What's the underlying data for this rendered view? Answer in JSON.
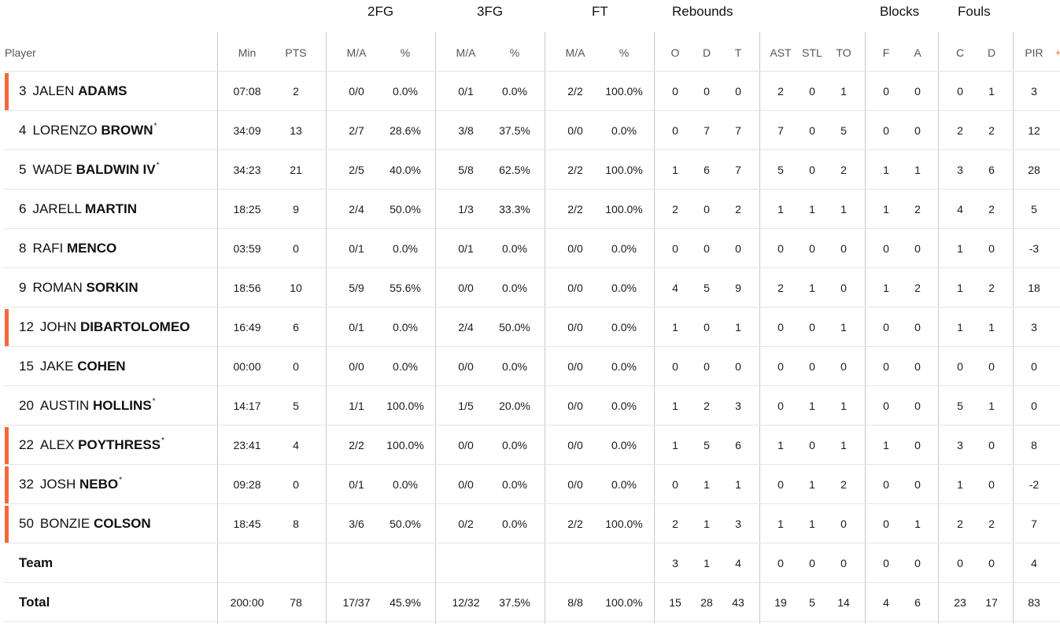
{
  "accent_color": "#f26a3c",
  "group_headers": {
    "twofg": "2FG",
    "threefg": "3FG",
    "ft": "FT",
    "rebounds": "Rebounds",
    "blocks": "Blocks",
    "fouls": "Fouls"
  },
  "column_headers": {
    "player": "Player",
    "min": "Min",
    "pts": "PTS",
    "twofg_ma": "M/A",
    "twofg_pct": "%",
    "threefg_ma": "M/A",
    "threefg_pct": "%",
    "ft_ma": "M/A",
    "ft_pct": "%",
    "reb_o": "O",
    "reb_d": "D",
    "reb_t": "T",
    "ast": "AST",
    "stl": "STL",
    "to": "TO",
    "blk_f": "F",
    "blk_a": "A",
    "foul_c": "C",
    "foul_d": "D",
    "pir": "PIR"
  },
  "players": [
    {
      "number": "3",
      "first": "JALEN",
      "last": "ADAMS",
      "star": false,
      "marker": true,
      "min": "07:08",
      "pts": "2",
      "twofg_ma": "0/0",
      "twofg_pct": "0.0%",
      "threefg_ma": "0/1",
      "threefg_pct": "0.0%",
      "ft_ma": "2/2",
      "ft_pct": "100.0%",
      "reb_o": "0",
      "reb_d": "0",
      "reb_t": "0",
      "ast": "2",
      "stl": "0",
      "to": "1",
      "blk_f": "0",
      "blk_a": "0",
      "foul_c": "0",
      "foul_d": "1",
      "pir": "3"
    },
    {
      "number": "4",
      "first": "LORENZO",
      "last": "BROWN",
      "star": true,
      "marker": false,
      "min": "34:09",
      "pts": "13",
      "twofg_ma": "2/7",
      "twofg_pct": "28.6%",
      "threefg_ma": "3/8",
      "threefg_pct": "37.5%",
      "ft_ma": "0/0",
      "ft_pct": "0.0%",
      "reb_o": "0",
      "reb_d": "7",
      "reb_t": "7",
      "ast": "7",
      "stl": "0",
      "to": "5",
      "blk_f": "0",
      "blk_a": "0",
      "foul_c": "2",
      "foul_d": "2",
      "pir": "12"
    },
    {
      "number": "5",
      "first": "WADE",
      "last": "BALDWIN IV",
      "star": true,
      "marker": false,
      "min": "34:23",
      "pts": "21",
      "twofg_ma": "2/5",
      "twofg_pct": "40.0%",
      "threefg_ma": "5/8",
      "threefg_pct": "62.5%",
      "ft_ma": "2/2",
      "ft_pct": "100.0%",
      "reb_o": "1",
      "reb_d": "6",
      "reb_t": "7",
      "ast": "5",
      "stl": "0",
      "to": "2",
      "blk_f": "1",
      "blk_a": "1",
      "foul_c": "3",
      "foul_d": "6",
      "pir": "28"
    },
    {
      "number": "6",
      "first": "JARELL",
      "last": "MARTIN",
      "star": false,
      "marker": false,
      "min": "18:25",
      "pts": "9",
      "twofg_ma": "2/4",
      "twofg_pct": "50.0%",
      "threefg_ma": "1/3",
      "threefg_pct": "33.3%",
      "ft_ma": "2/2",
      "ft_pct": "100.0%",
      "reb_o": "2",
      "reb_d": "0",
      "reb_t": "2",
      "ast": "1",
      "stl": "1",
      "to": "1",
      "blk_f": "1",
      "blk_a": "2",
      "foul_c": "4",
      "foul_d": "2",
      "pir": "5"
    },
    {
      "number": "8",
      "first": "RAFI",
      "last": "MENCO",
      "star": false,
      "marker": false,
      "min": "03:59",
      "pts": "0",
      "twofg_ma": "0/1",
      "twofg_pct": "0.0%",
      "threefg_ma": "0/1",
      "threefg_pct": "0.0%",
      "ft_ma": "0/0",
      "ft_pct": "0.0%",
      "reb_o": "0",
      "reb_d": "0",
      "reb_t": "0",
      "ast": "0",
      "stl": "0",
      "to": "0",
      "blk_f": "0",
      "blk_a": "0",
      "foul_c": "1",
      "foul_d": "0",
      "pir": "-3"
    },
    {
      "number": "9",
      "first": "ROMAN",
      "last": "SORKIN",
      "star": false,
      "marker": false,
      "min": "18:56",
      "pts": "10",
      "twofg_ma": "5/9",
      "twofg_pct": "55.6%",
      "threefg_ma": "0/0",
      "threefg_pct": "0.0%",
      "ft_ma": "0/0",
      "ft_pct": "0.0%",
      "reb_o": "4",
      "reb_d": "5",
      "reb_t": "9",
      "ast": "2",
      "stl": "1",
      "to": "0",
      "blk_f": "1",
      "blk_a": "2",
      "foul_c": "1",
      "foul_d": "2",
      "pir": "18"
    },
    {
      "number": "12",
      "first": "JOHN",
      "last": "DIBARTOLOMEO",
      "star": false,
      "marker": true,
      "min": "16:49",
      "pts": "6",
      "twofg_ma": "0/1",
      "twofg_pct": "0.0%",
      "threefg_ma": "2/4",
      "threefg_pct": "50.0%",
      "ft_ma": "0/0",
      "ft_pct": "0.0%",
      "reb_o": "1",
      "reb_d": "0",
      "reb_t": "1",
      "ast": "0",
      "stl": "0",
      "to": "1",
      "blk_f": "0",
      "blk_a": "0",
      "foul_c": "1",
      "foul_d": "1",
      "pir": "3"
    },
    {
      "number": "15",
      "first": "JAKE",
      "last": "COHEN",
      "star": false,
      "marker": false,
      "min": "00:00",
      "pts": "0",
      "twofg_ma": "0/0",
      "twofg_pct": "0.0%",
      "threefg_ma": "0/0",
      "threefg_pct": "0.0%",
      "ft_ma": "0/0",
      "ft_pct": "0.0%",
      "reb_o": "0",
      "reb_d": "0",
      "reb_t": "0",
      "ast": "0",
      "stl": "0",
      "to": "0",
      "blk_f": "0",
      "blk_a": "0",
      "foul_c": "0",
      "foul_d": "0",
      "pir": "0"
    },
    {
      "number": "20",
      "first": "AUSTIN",
      "last": "HOLLINS",
      "star": true,
      "marker": false,
      "min": "14:17",
      "pts": "5",
      "twofg_ma": "1/1",
      "twofg_pct": "100.0%",
      "threefg_ma": "1/5",
      "threefg_pct": "20.0%",
      "ft_ma": "0/0",
      "ft_pct": "0.0%",
      "reb_o": "1",
      "reb_d": "2",
      "reb_t": "3",
      "ast": "0",
      "stl": "1",
      "to": "1",
      "blk_f": "0",
      "blk_a": "0",
      "foul_c": "5",
      "foul_d": "1",
      "pir": "0"
    },
    {
      "number": "22",
      "first": "ALEX",
      "last": "POYTHRESS",
      "star": true,
      "marker": true,
      "min": "23:41",
      "pts": "4",
      "twofg_ma": "2/2",
      "twofg_pct": "100.0%",
      "threefg_ma": "0/0",
      "threefg_pct": "0.0%",
      "ft_ma": "0/0",
      "ft_pct": "0.0%",
      "reb_o": "1",
      "reb_d": "5",
      "reb_t": "6",
      "ast": "1",
      "stl": "0",
      "to": "1",
      "blk_f": "1",
      "blk_a": "0",
      "foul_c": "3",
      "foul_d": "0",
      "pir": "8"
    },
    {
      "number": "32",
      "first": "JOSH",
      "last": "NEBO",
      "star": true,
      "marker": true,
      "min": "09:28",
      "pts": "0",
      "twofg_ma": "0/1",
      "twofg_pct": "0.0%",
      "threefg_ma": "0/0",
      "threefg_pct": "0.0%",
      "ft_ma": "0/0",
      "ft_pct": "0.0%",
      "reb_o": "0",
      "reb_d": "1",
      "reb_t": "1",
      "ast": "0",
      "stl": "1",
      "to": "2",
      "blk_f": "0",
      "blk_a": "0",
      "foul_c": "1",
      "foul_d": "0",
      "pir": "-2"
    },
    {
      "number": "50",
      "first": "BONZIE",
      "last": "COLSON",
      "star": false,
      "marker": true,
      "min": "18:45",
      "pts": "8",
      "twofg_ma": "3/6",
      "twofg_pct": "50.0%",
      "threefg_ma": "0/2",
      "threefg_pct": "0.0%",
      "ft_ma": "2/2",
      "ft_pct": "100.0%",
      "reb_o": "2",
      "reb_d": "1",
      "reb_t": "3",
      "ast": "1",
      "stl": "1",
      "to": "0",
      "blk_f": "0",
      "blk_a": "1",
      "foul_c": "2",
      "foul_d": "2",
      "pir": "7"
    }
  ],
  "team_row": {
    "label": "Team",
    "min": "",
    "pts": "",
    "twofg_ma": "",
    "twofg_pct": "",
    "threefg_ma": "",
    "threefg_pct": "",
    "ft_ma": "",
    "ft_pct": "",
    "reb_o": "3",
    "reb_d": "1",
    "reb_t": "4",
    "ast": "0",
    "stl": "0",
    "to": "0",
    "blk_f": "0",
    "blk_a": "0",
    "foul_c": "0",
    "foul_d": "0",
    "pir": "4"
  },
  "total_row": {
    "label": "Total",
    "min": "200:00",
    "pts": "78",
    "twofg_ma": "17/37",
    "twofg_pct": "45.9%",
    "threefg_ma": "12/32",
    "threefg_pct": "37.5%",
    "ft_ma": "8/8",
    "ft_pct": "100.0%",
    "reb_o": "15",
    "reb_d": "28",
    "reb_t": "43",
    "ast": "19",
    "stl": "5",
    "to": "14",
    "blk_f": "4",
    "blk_a": "6",
    "foul_c": "23",
    "foul_d": "17",
    "pir": "83"
  }
}
